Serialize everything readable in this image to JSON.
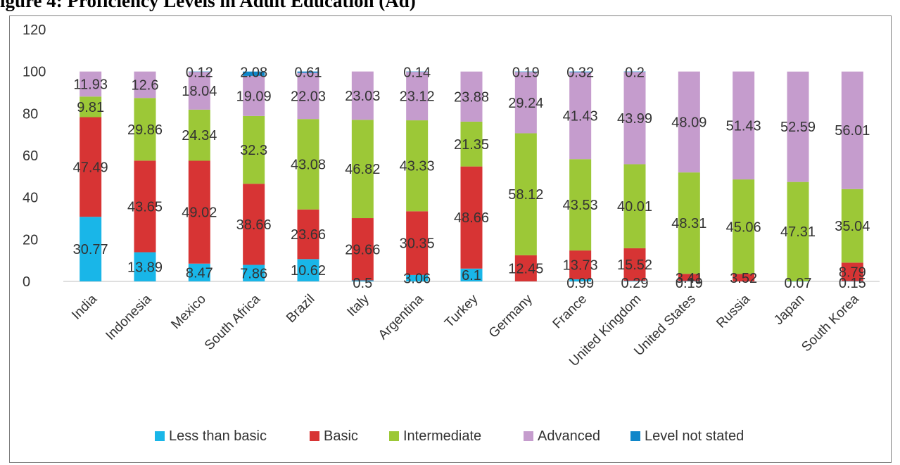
{
  "figure_title": "igure 4: Proficiency Levels in Adult Education (Ad)",
  "colors": {
    "less_than_basic": "#19b6e8",
    "basic": "#d73434",
    "intermediate": "#9cc837",
    "advanced": "#c59ccd",
    "level_not_stated": "#0f86c9"
  },
  "chart_data": {
    "type": "bar",
    "stacked": true,
    "title": "",
    "xlabel": "",
    "ylabel": "",
    "ylim": [
      0,
      120
    ],
    "yticks": [
      0,
      20,
      40,
      60,
      80,
      100,
      120
    ],
    "grid": false,
    "legend_position": "bottom",
    "categories": [
      "India",
      "Indonesia",
      "Mexico",
      "South Africa",
      "Brazil",
      "Italy",
      "Argentina",
      "Turkey",
      "Germany",
      "France",
      "United Kingdom",
      "United States",
      "Russia",
      "Japan",
      "South Korea"
    ],
    "series": [
      {
        "name": "Less than basic",
        "color_key": "less_than_basic",
        "values": [
          30.77,
          13.89,
          8.47,
          7.86,
          10.62,
          0.5,
          3.06,
          6.1,
          0,
          0.99,
          0.29,
          0.19,
          0,
          0.07,
          0.15
        ]
      },
      {
        "name": "Basic",
        "color_key": "basic",
        "values": [
          47.49,
          43.65,
          49.02,
          38.66,
          23.66,
          29.66,
          30.35,
          48.66,
          12.45,
          13.73,
          15.52,
          3.41,
          3.52,
          0,
          8.79
        ]
      },
      {
        "name": "Intermediate",
        "color_key": "intermediate",
        "values": [
          9.81,
          29.86,
          24.34,
          32.3,
          43.08,
          46.82,
          43.33,
          21.35,
          58.12,
          43.53,
          40.01,
          48.31,
          45.06,
          47.31,
          35.04
        ]
      },
      {
        "name": "Advanced",
        "color_key": "advanced",
        "values": [
          11.93,
          12.6,
          18.04,
          19.09,
          22.03,
          23.03,
          23.12,
          23.88,
          29.24,
          41.43,
          43.99,
          48.09,
          51.43,
          52.59,
          56.01
        ]
      },
      {
        "name": "Level not stated",
        "color_key": "level_not_stated",
        "values": [
          0,
          0,
          0.12,
          2.08,
          0.61,
          0,
          0.14,
          0,
          0.19,
          0.32,
          0.2,
          0,
          0,
          0,
          0
        ]
      }
    ],
    "data_labels": [
      [
        {
          "s": 0,
          "t": "30.77"
        },
        {
          "s": 1,
          "t": "47.49"
        },
        {
          "s": 2,
          "t": "9.81"
        },
        {
          "s": 3,
          "t": "11.93"
        }
      ],
      [
        {
          "s": 0,
          "t": "13.89"
        },
        {
          "s": 1,
          "t": "43.65"
        },
        {
          "s": 2,
          "t": "29.86"
        },
        {
          "s": 3,
          "t": "12.6"
        }
      ],
      [
        {
          "s": 0,
          "t": "8.47"
        },
        {
          "s": 1,
          "t": "49.02"
        },
        {
          "s": 2,
          "t": "24.34"
        },
        {
          "s": 3,
          "t": "18.04"
        },
        {
          "s": 4,
          "t": "0.12"
        }
      ],
      [
        {
          "s": 0,
          "t": "7.86"
        },
        {
          "s": 1,
          "t": "38.66"
        },
        {
          "s": 2,
          "t": "32.3"
        },
        {
          "s": 3,
          "t": "19.09"
        },
        {
          "s": 4,
          "t": "2.08"
        }
      ],
      [
        {
          "s": 0,
          "t": "10.62"
        },
        {
          "s": 1,
          "t": "23.66"
        },
        {
          "s": 2,
          "t": "43.08"
        },
        {
          "s": 3,
          "t": "22.03"
        },
        {
          "s": 4,
          "t": "0.61"
        }
      ],
      [
        {
          "s": 0,
          "t": "0.5"
        },
        {
          "s": 1,
          "t": "29.66"
        },
        {
          "s": 2,
          "t": "46.82"
        },
        {
          "s": 3,
          "t": "23.03"
        }
      ],
      [
        {
          "s": 0,
          "t": "3.06"
        },
        {
          "s": 1,
          "t": "30.35"
        },
        {
          "s": 2,
          "t": "43.33"
        },
        {
          "s": 3,
          "t": "23.12"
        },
        {
          "s": 4,
          "t": "0.14"
        }
      ],
      [
        {
          "s": 0,
          "t": "6.1"
        },
        {
          "s": 1,
          "t": "48.66"
        },
        {
          "s": 2,
          "t": "21.35"
        },
        {
          "s": 3,
          "t": "23.88"
        }
      ],
      [
        {
          "s": 1,
          "t": "12.45"
        },
        {
          "s": 2,
          "t": "58.12"
        },
        {
          "s": 3,
          "t": "29.24"
        },
        {
          "s": 4,
          "t": "0.19"
        }
      ],
      [
        {
          "s": 0,
          "t": "0.99"
        },
        {
          "s": 1,
          "t": "13.73"
        },
        {
          "s": 2,
          "t": "43.53"
        },
        {
          "s": 3,
          "t": "41.43"
        },
        {
          "s": 4,
          "t": "0.32"
        }
      ],
      [
        {
          "s": 0,
          "t": "0.29"
        },
        {
          "s": 1,
          "t": "15.52"
        },
        {
          "s": 2,
          "t": "40.01"
        },
        {
          "s": 3,
          "t": "43.99"
        },
        {
          "s": 4,
          "t": "0.2"
        }
      ],
      [
        {
          "s": 0,
          "t": "0.19"
        },
        {
          "s": 1,
          "t": "3.41"
        },
        {
          "s": 2,
          "t": "48.31"
        },
        {
          "s": 3,
          "t": "48.09"
        }
      ],
      [
        {
          "s": 1,
          "t": "3.52"
        },
        {
          "s": 2,
          "t": "45.06"
        },
        {
          "s": 3,
          "t": "51.43"
        }
      ],
      [
        {
          "s": 0,
          "t": "0.07"
        },
        {
          "s": 2,
          "t": "47.31"
        },
        {
          "s": 3,
          "t": "52.59"
        }
      ],
      [
        {
          "s": 0,
          "t": "0.15"
        },
        {
          "s": 1,
          "t": "8.79"
        },
        {
          "s": 2,
          "t": "35.04"
        },
        {
          "s": 3,
          "t": "56.01"
        }
      ]
    ]
  }
}
